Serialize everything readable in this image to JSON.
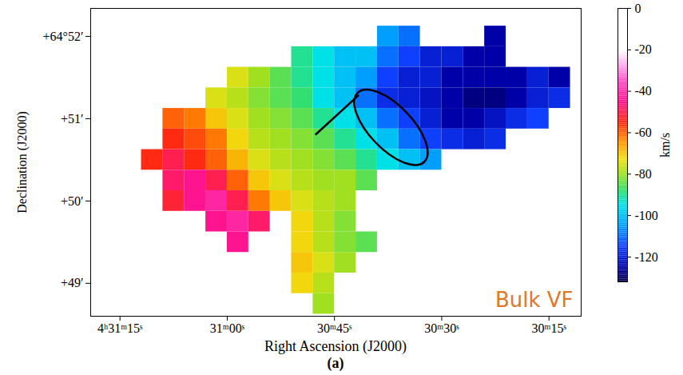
{
  "chart_data": {
    "type": "heatmap",
    "xlabel": "Right Ascension (J2000)",
    "ylabel": "Declination (J2000)",
    "caption": "(a)",
    "annotation": "Bulk VF",
    "x": [
      76.5,
      73.5,
      70.5,
      67.5,
      64.5,
      61.5,
      58.5,
      55.5,
      52.5,
      49.5,
      46.5,
      43.5,
      40.5,
      37.5,
      34.5,
      31.5,
      28.5,
      25.5,
      22.5,
      19.5,
      16.5,
      13.5
    ],
    "y": [
      52.0,
      51.75,
      51.5,
      51.25,
      51.0,
      50.75,
      50.5,
      50.25,
      50.0,
      49.75,
      49.5,
      49.25,
      49.0,
      48.75
    ],
    "values": [
      [
        null,
        null,
        null,
        null,
        null,
        null,
        null,
        null,
        null,
        null,
        null,
        null,
        null,
        -105,
        -110,
        null,
        null,
        null,
        -125,
        null,
        null,
        null
      ],
      [
        null,
        null,
        null,
        null,
        null,
        null,
        null,
        null,
        null,
        -90,
        -95,
        -100,
        -100,
        -110,
        -115,
        -120,
        -120,
        -125,
        -125,
        null,
        null,
        null
      ],
      [
        null,
        null,
        null,
        null,
        null,
        null,
        -75,
        -80,
        -85,
        -90,
        -95,
        -100,
        -105,
        -115,
        -120,
        -120,
        -125,
        -125,
        -125,
        -125,
        -120,
        -125
      ],
      [
        null,
        null,
        null,
        null,
        null,
        -75,
        -78,
        -82,
        -85,
        -88,
        -95,
        -100,
        -110,
        -118,
        -120,
        -122,
        -125,
        -128,
        -128,
        -125,
        -120,
        -118
      ],
      [
        null,
        null,
        null,
        -60,
        -62,
        -70,
        -75,
        -80,
        -82,
        -85,
        -90,
        -95,
        -100,
        -110,
        -115,
        -120,
        -125,
        -125,
        -122,
        -118,
        -115,
        null
      ],
      [
        null,
        null,
        null,
        -55,
        -58,
        -62,
        -72,
        -78,
        -80,
        -82,
        -85,
        -90,
        -95,
        -100,
        -110,
        -115,
        -118,
        -120,
        -118,
        null,
        null,
        null
      ],
      [
        null,
        null,
        -55,
        -50,
        -55,
        -60,
        -68,
        -75,
        -78,
        -80,
        -82,
        -85,
        -90,
        -95,
        -100,
        -105,
        null,
        null,
        null,
        null,
        null,
        null
      ],
      [
        null,
        null,
        null,
        -48,
        -45,
        -50,
        -60,
        -70,
        -75,
        -78,
        -80,
        -80,
        -85,
        null,
        null,
        null,
        null,
        null,
        null,
        null,
        null,
        null
      ],
      [
        null,
        null,
        null,
        -52,
        -45,
        -42,
        -50,
        -62,
        -70,
        -75,
        -78,
        -80,
        null,
        null,
        null,
        null,
        null,
        null,
        null,
        null,
        null,
        null
      ],
      [
        null,
        null,
        null,
        null,
        null,
        -45,
        -42,
        -48,
        null,
        -72,
        -78,
        -82,
        null,
        null,
        null,
        null,
        null,
        null,
        null,
        null,
        null,
        null
      ],
      [
        null,
        null,
        null,
        null,
        null,
        null,
        -45,
        null,
        null,
        -72,
        -78,
        -82,
        -85,
        null,
        null,
        null,
        null,
        null,
        null,
        null,
        null,
        null
      ],
      [
        null,
        null,
        null,
        null,
        null,
        null,
        null,
        null,
        null,
        -70,
        -75,
        -80,
        null,
        null,
        null,
        null,
        null,
        null,
        null,
        null,
        null,
        null
      ],
      [
        null,
        null,
        null,
        null,
        null,
        null,
        null,
        null,
        null,
        -72,
        -78,
        null,
        null,
        null,
        null,
        null,
        null,
        null,
        null,
        null,
        null,
        null
      ],
      [
        null,
        null,
        null,
        null,
        null,
        null,
        null,
        null,
        null,
        null,
        -80,
        null,
        null,
        null,
        null,
        null,
        null,
        null,
        null,
        null,
        null,
        null
      ]
    ],
    "xlim": [
      79.1,
      10.5
    ],
    "ylim": [
      48.6,
      52.34
    ],
    "xticks": [
      {
        "value": 75,
        "label": "4ʰ31ᵐ15ˢ"
      },
      {
        "value": 60,
        "label": "31ᵐ00ˢ"
      },
      {
        "value": 45,
        "label": "30ᵐ45ˢ"
      },
      {
        "value": 30,
        "label": "30ᵐ30ˢ"
      },
      {
        "value": 15,
        "label": "30ᵐ15ˢ"
      }
    ],
    "yticks": [
      {
        "value": 52,
        "label": "+64°52′"
      },
      {
        "value": 51,
        "label": "+51′"
      },
      {
        "value": 50,
        "label": "+50′"
      },
      {
        "value": 49,
        "label": "+49′"
      }
    ],
    "colorbar": {
      "label": "km/s",
      "range": [
        -132,
        0
      ],
      "ticks": [
        0,
        -20,
        -40,
        -60,
        -80,
        -100,
        -120
      ]
    },
    "line": [
      [
        47.6,
        50.81
      ],
      [
        41.7,
        51.28
      ]
    ],
    "ellipse": [
      [
        41.7,
        51.31
      ],
      [
        32.4,
        50.47
      ]
    ]
  }
}
